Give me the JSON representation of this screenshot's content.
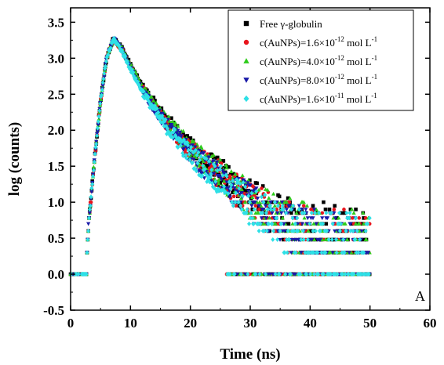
{
  "chart_data": {
    "type": "scatter",
    "xlabel": "Time (ns)",
    "ylabel": "log (counts)",
    "xlim": [
      0,
      60
    ],
    "ylim": [
      -0.5,
      3.7
    ],
    "xticks": [
      "0",
      "10",
      "20",
      "30",
      "40",
      "50",
      "60"
    ],
    "yticks": [
      "-0.5",
      "0.0",
      "0.5",
      "1.0",
      "1.5",
      "2.0",
      "2.5",
      "3.0",
      "3.5"
    ],
    "panel_label": "A",
    "grid": false,
    "legend_position": "top-right",
    "series": [
      {
        "name": "Free γ-globulin",
        "legend": {
          "prefix": "Free γ-globulin",
          "exp": "",
          "suffix": ""
        },
        "marker": "square",
        "color": "#000000",
        "peak_x": 7.2,
        "peak_y": 3.28,
        "rise_start": 2.6,
        "tail_end": 50,
        "curve": [
          [
            2.6,
            0.0
          ],
          [
            3.0,
            0.7
          ],
          [
            4.0,
            1.6
          ],
          [
            5.0,
            2.4
          ],
          [
            6.0,
            3.0
          ],
          [
            7.2,
            3.28
          ],
          [
            8.5,
            3.15
          ],
          [
            10,
            2.9
          ],
          [
            12,
            2.6
          ],
          [
            15,
            2.25
          ],
          [
            18,
            1.95
          ],
          [
            20,
            1.75
          ],
          [
            22,
            1.6
          ],
          [
            25,
            1.4
          ],
          [
            28,
            1.2
          ],
          [
            30,
            1.05
          ],
          [
            33,
            0.9
          ],
          [
            36,
            0.75
          ],
          [
            40,
            0.62
          ],
          [
            45,
            0.5
          ],
          [
            50,
            0.45
          ]
        ]
      },
      {
        "name": "c(AuNPs)=1.6×10-12 mol L-1",
        "legend": {
          "prefix": "c(AuNPs)=1.6×10",
          "exp": "-12",
          "suffix": " mol L",
          "suffix_exp": "-1"
        },
        "marker": "circle",
        "color": "#e8141c",
        "curve": [
          [
            2.6,
            0.0
          ],
          [
            3.0,
            0.7
          ],
          [
            4.0,
            1.6
          ],
          [
            5.0,
            2.4
          ],
          [
            6.0,
            3.0
          ],
          [
            7.2,
            3.27
          ],
          [
            8.5,
            3.13
          ],
          [
            10,
            2.88
          ],
          [
            12,
            2.58
          ],
          [
            15,
            2.2
          ],
          [
            18,
            1.92
          ],
          [
            20,
            1.72
          ],
          [
            22,
            1.57
          ],
          [
            25,
            1.37
          ],
          [
            28,
            1.17
          ],
          [
            30,
            1.02
          ],
          [
            33,
            0.87
          ],
          [
            36,
            0.72
          ],
          [
            40,
            0.58
          ],
          [
            45,
            0.45
          ],
          [
            50,
            0.4
          ]
        ]
      },
      {
        "name": "c(AuNPs)=4.0×10-12 mol L-1",
        "legend": {
          "prefix": "c(AuNPs)=4.0×10",
          "exp": "-12",
          "suffix": " mol L",
          "suffix_exp": "-1"
        },
        "marker": "triangle-up",
        "color": "#2ecc1b",
        "curve": [
          [
            2.6,
            0.0
          ],
          [
            3.0,
            0.7
          ],
          [
            4.0,
            1.6
          ],
          [
            5.0,
            2.4
          ],
          [
            6.0,
            3.0
          ],
          [
            7.2,
            3.28
          ],
          [
            8.5,
            3.14
          ],
          [
            10,
            2.9
          ],
          [
            12,
            2.6
          ],
          [
            15,
            2.23
          ],
          [
            18,
            1.94
          ],
          [
            20,
            1.74
          ],
          [
            22,
            1.6
          ],
          [
            25,
            1.4
          ],
          [
            28,
            1.2
          ],
          [
            30,
            1.05
          ],
          [
            33,
            0.9
          ],
          [
            36,
            0.75
          ],
          [
            40,
            0.6
          ],
          [
            45,
            0.48
          ],
          [
            50,
            0.42
          ]
        ]
      },
      {
        "name": "c(AuNPs)=8.0×10-12 mol L-1",
        "legend": {
          "prefix": "c(AuNPs)=8.0×10",
          "exp": "-12",
          "suffix": " mol L",
          "suffix_exp": "-1"
        },
        "marker": "triangle-down",
        "color": "#1a1aa8",
        "curve": [
          [
            2.6,
            0.0
          ],
          [
            3.0,
            0.7
          ],
          [
            4.0,
            1.6
          ],
          [
            5.0,
            2.4
          ],
          [
            6.0,
            3.0
          ],
          [
            7.2,
            3.27
          ],
          [
            8.5,
            3.12
          ],
          [
            10,
            2.86
          ],
          [
            12,
            2.55
          ],
          [
            15,
            2.18
          ],
          [
            18,
            1.88
          ],
          [
            20,
            1.68
          ],
          [
            22,
            1.53
          ],
          [
            25,
            1.33
          ],
          [
            28,
            1.13
          ],
          [
            30,
            0.98
          ],
          [
            33,
            0.83
          ],
          [
            36,
            0.68
          ],
          [
            40,
            0.55
          ],
          [
            45,
            0.42
          ],
          [
            50,
            0.38
          ]
        ]
      },
      {
        "name": "c(AuNPs)=1.6×10-11 mol L-1",
        "legend": {
          "prefix": "c(AuNPs)=1.6×10",
          "exp": "-11",
          "suffix": " mol L",
          "suffix_exp": "-1"
        },
        "marker": "diamond",
        "color": "#2ee0e6",
        "curve": [
          [
            2.6,
            0.0
          ],
          [
            3.0,
            0.7
          ],
          [
            4.0,
            1.6
          ],
          [
            5.0,
            2.4
          ],
          [
            6.0,
            3.0
          ],
          [
            7.2,
            3.27
          ],
          [
            8.5,
            3.11
          ],
          [
            10,
            2.85
          ],
          [
            12,
            2.53
          ],
          [
            15,
            2.15
          ],
          [
            18,
            1.85
          ],
          [
            20,
            1.65
          ],
          [
            22,
            1.5
          ],
          [
            25,
            1.3
          ],
          [
            28,
            1.1
          ],
          [
            30,
            0.95
          ],
          [
            33,
            0.8
          ],
          [
            36,
            0.65
          ],
          [
            40,
            0.52
          ],
          [
            45,
            0.4
          ],
          [
            50,
            0.35
          ]
        ]
      }
    ],
    "discrete_levels": [
      0.0,
      0.3,
      0.48,
      0.6,
      0.7,
      0.78,
      0.85,
      0.9,
      0.95,
      1.0
    ]
  }
}
